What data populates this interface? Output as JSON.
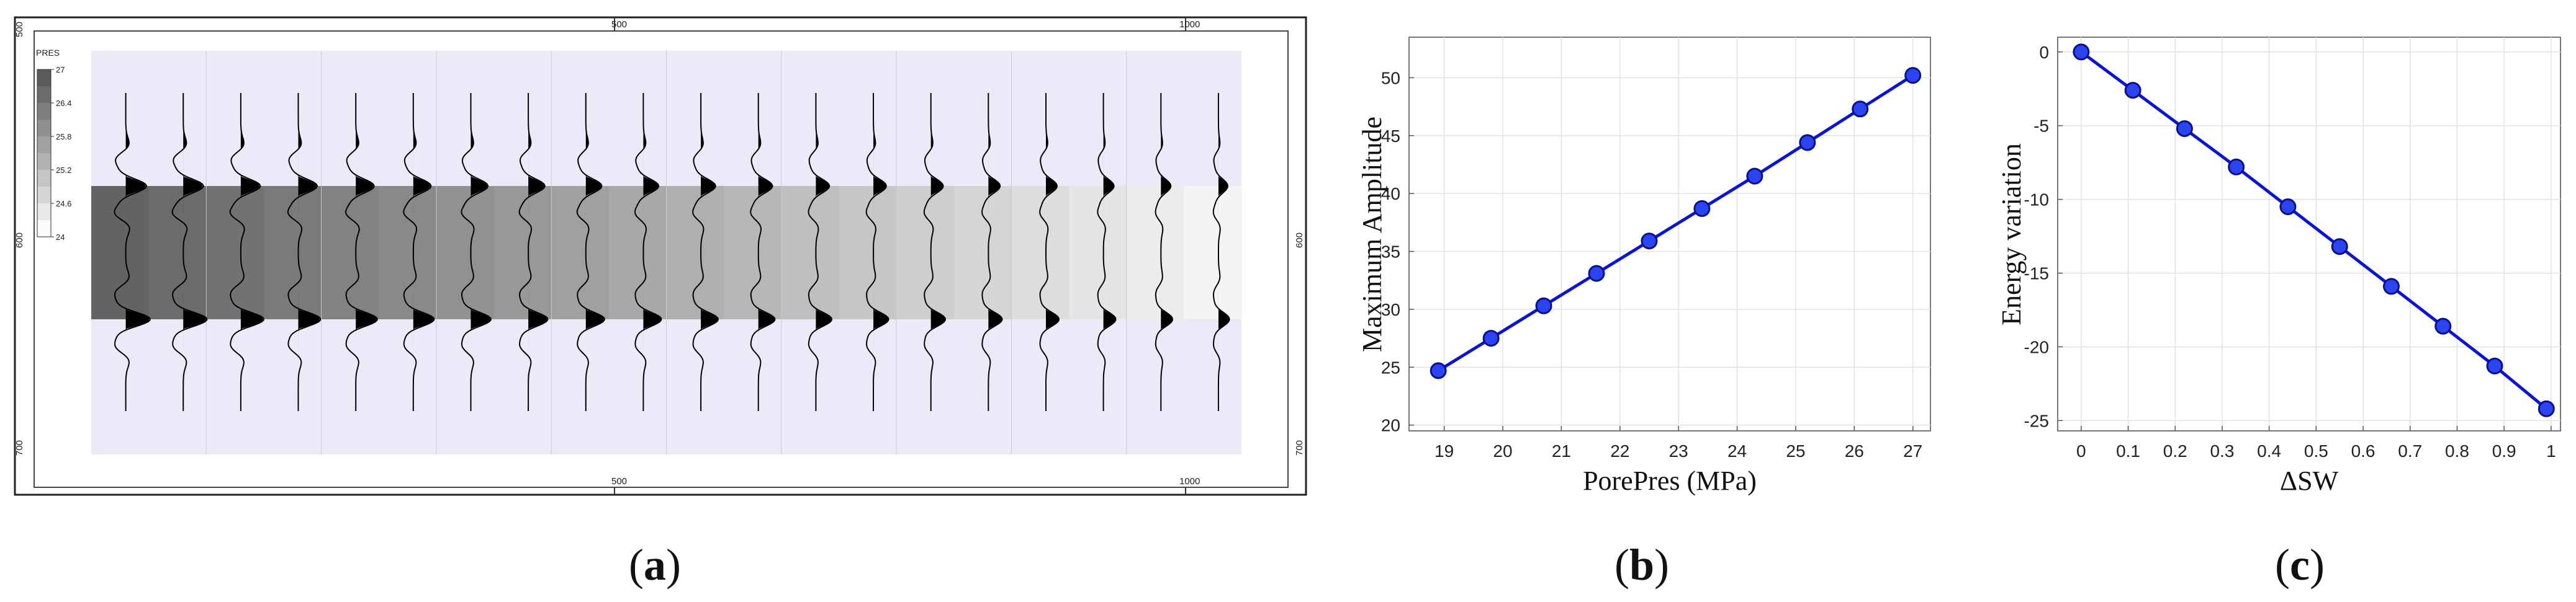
{
  "panel_a": {
    "caption_letter": "a",
    "ruler": {
      "top_ticks": [
        "500",
        "1000"
      ],
      "bottom_ticks": [
        "500",
        "1000"
      ],
      "left_ticks": [
        "500",
        "600",
        "700"
      ],
      "right_ticks": [
        "600",
        "700"
      ]
    },
    "colorbar": {
      "title": "PRES",
      "ticks": [
        "27",
        "26.4",
        "25.8",
        "25.2",
        "24.6",
        "24"
      ]
    },
    "traces": 20,
    "layer_gray_left": "#636363",
    "layer_gray_right": "#f4f4f4",
    "background_color": "#eaeaf8",
    "wavelet_color": "#000000"
  },
  "chart_data": [
    {
      "caption_letter": "b",
      "type": "line",
      "title": "",
      "xlabel": "PorePres (MPa)",
      "ylabel": "Maximum Amplitude",
      "xlim": [
        18.4,
        27.3
      ],
      "ylim": [
        19.5,
        53.5
      ],
      "xticks": [
        "19",
        "20",
        "21",
        "22",
        "23",
        "24",
        "25",
        "26",
        "27"
      ],
      "yticks": [
        "20",
        "25",
        "30",
        "35",
        "40",
        "45",
        "50"
      ],
      "grid": true,
      "legend": "none",
      "color": "#0a14d2",
      "x": [
        18.9,
        19.8,
        20.7,
        21.6,
        22.5,
        23.4,
        24.3,
        25.2,
        26.1,
        27.0
      ],
      "y": [
        24.7,
        27.5,
        30.3,
        33.1,
        35.9,
        38.7,
        41.5,
        44.4,
        47.3,
        50.2
      ]
    },
    {
      "caption_letter": "c",
      "type": "line",
      "title": "",
      "xlabel": "ΔSW",
      "ylabel": "Energy variation",
      "xlim": [
        -0.05,
        1.02
      ],
      "ylim": [
        -25.7,
        1.0
      ],
      "xticks": [
        "0",
        "0.1",
        "0.2",
        "0.3",
        "0.4",
        "0.5",
        "0.6",
        "0.7",
        "0.8",
        "0.9",
        "1"
      ],
      "yticks": [
        "0",
        "-5",
        "-10",
        "-15",
        "-20",
        "-25"
      ],
      "grid": true,
      "legend": "none",
      "color": "#0a14d2",
      "x": [
        0,
        0.11,
        0.22,
        0.33,
        0.44,
        0.55,
        0.66,
        0.77,
        0.88,
        0.99
      ],
      "y": [
        0,
        -2.6,
        -5.2,
        -7.8,
        -10.5,
        -13.2,
        -15.9,
        -18.6,
        -21.3,
        -24.2
      ]
    }
  ]
}
